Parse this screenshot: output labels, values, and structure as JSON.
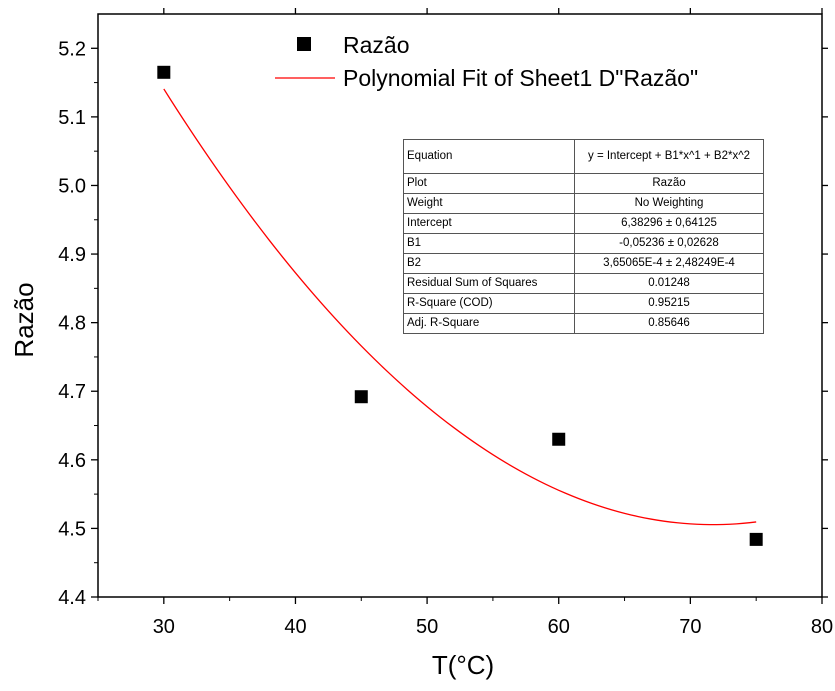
{
  "chart_data": {
    "type": "scatter",
    "xlabel": "T(°C)",
    "ylabel": "Razão",
    "xlim": [
      25,
      80
    ],
    "ylim": [
      4.4,
      5.25
    ],
    "x_ticks": [
      "30",
      "40",
      "50",
      "60",
      "70",
      "80"
    ],
    "y_ticks": [
      "4.4",
      "4.5",
      "4.6",
      "4.7",
      "4.8",
      "4.9",
      "5.0",
      "5.1",
      "5.2"
    ],
    "x_tick_values": [
      30,
      40,
      50,
      60,
      70,
      80
    ],
    "y_tick_values": [
      4.4,
      4.5,
      4.6,
      4.7,
      4.8,
      4.9,
      5.0,
      5.1,
      5.2
    ],
    "legend_position": "top-right",
    "series": [
      {
        "name": "Razão",
        "kind": "points",
        "color": "#000000",
        "marker": "square",
        "x": [
          30,
          45,
          60,
          75
        ],
        "y": [
          5.165,
          4.692,
          4.63,
          4.484
        ]
      },
      {
        "name": "Polynomial Fit of Sheet1 D\"Razão\"",
        "kind": "fit",
        "color": "#ff0000",
        "x_range": [
          30,
          75
        ],
        "coefficients": [
          6.38296,
          -0.05236,
          0.000365065
        ]
      }
    ],
    "fit_table": {
      "rows": [
        {
          "label": "Equation",
          "value": "y = Intercept + B1*x^1 + B2*x^2"
        },
        {
          "label": "Plot",
          "value": "Razão"
        },
        {
          "label": "Weight",
          "value": "No Weighting"
        },
        {
          "label": "Intercept",
          "value": "6,38296 ± 0,64125"
        },
        {
          "label": "B1",
          "value": "-0,05236 ± 0,02628"
        },
        {
          "label": "B2",
          "value": "3,65065E-4 ± 2,48249E-4"
        },
        {
          "label": "Residual Sum of Squares",
          "value": "0.01248"
        },
        {
          "label": "R-Square (COD)",
          "value": "0.95215"
        },
        {
          "label": "Adj. R-Square",
          "value": "0.85646"
        }
      ]
    }
  }
}
